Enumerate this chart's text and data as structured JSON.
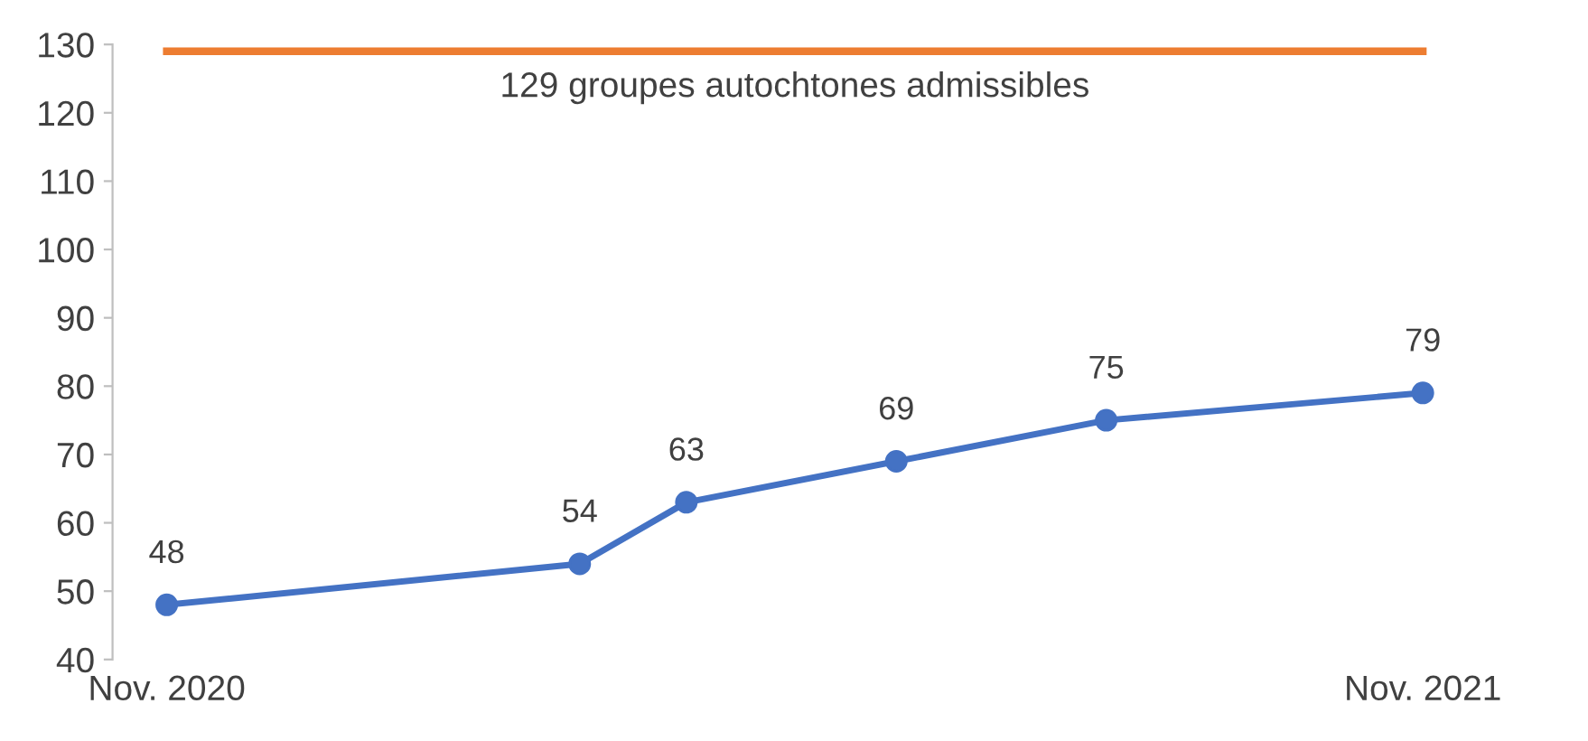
{
  "chart_data": {
    "type": "line",
    "x": [
      "2020-11",
      "2021-03",
      "2021-04",
      "2021-06",
      "2021-08",
      "2021-11"
    ],
    "series": [
      {
        "color": "#4472c4",
        "values": [
          48,
          54,
          63,
          69,
          75,
          79
        ]
      }
    ],
    "marker": "circle",
    "line_style": "solid",
    "data_labels": true,
    "xlim": [
      "2020-11",
      "2021-11"
    ],
    "xticks": [
      {
        "value": "2020-11",
        "label": "Nov. 2020"
      },
      {
        "value": "2021-11",
        "label": "Nov. 2021"
      }
    ],
    "ylim": [
      40,
      130
    ],
    "yticks": [
      40,
      50,
      60,
      70,
      80,
      90,
      100,
      110,
      120,
      130
    ],
    "ref_lines": [
      {
        "axis": "y",
        "value": 129,
        "label": "129 groupes autochtones admissibles",
        "color": "#ed7d31",
        "line_style": "solid"
      }
    ],
    "grid": false,
    "legend": false
  }
}
